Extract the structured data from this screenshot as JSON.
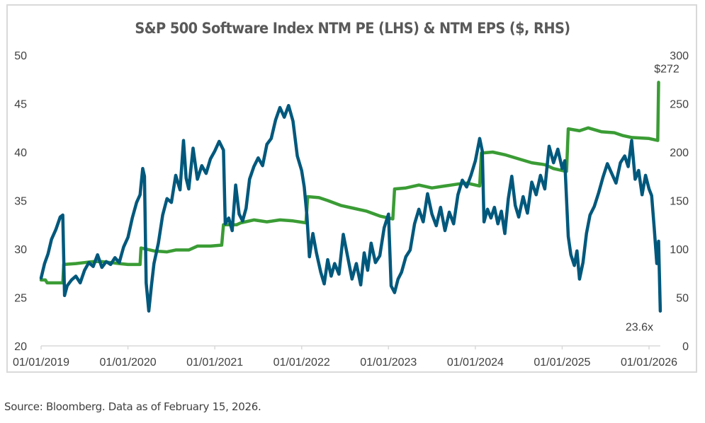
{
  "chart_data": {
    "type": "line",
    "title": "S&P 500 Software Index NTM PE (LHS) & NTM EPS ($, RHS)",
    "xlabel": "",
    "ylabel_left": "",
    "ylabel_right": "",
    "x_ticks": [
      "01/01/2019",
      "01/01/2020",
      "01/01/2021",
      "01/01/2022",
      "01/01/2023",
      "01/01/2024",
      "01/01/2025",
      "01/01/2026"
    ],
    "x_range": [
      2019.0,
      2026.13
    ],
    "y_left": {
      "range": [
        20,
        50
      ],
      "ticks": [
        "20",
        "25",
        "30",
        "35",
        "40",
        "45",
        "50"
      ]
    },
    "y_right": {
      "range": [
        0,
        300
      ],
      "ticks": [
        "0",
        "50",
        "100",
        "150",
        "200",
        "250",
        "300"
      ]
    },
    "grid": false,
    "legend": "none",
    "series": [
      {
        "name": "NTM PE",
        "axis": "left",
        "color": "#00587c",
        "points": [
          [
            2019.0,
            27
          ],
          [
            2019.04,
            28.5
          ],
          [
            2019.08,
            29.5
          ],
          [
            2019.12,
            31
          ],
          [
            2019.17,
            32
          ],
          [
            2019.22,
            33.3
          ],
          [
            2019.25,
            33.5
          ],
          [
            2019.27,
            25.2
          ],
          [
            2019.3,
            26.2
          ],
          [
            2019.35,
            26.8
          ],
          [
            2019.4,
            27.2
          ],
          [
            2019.45,
            26.5
          ],
          [
            2019.5,
            27.8
          ],
          [
            2019.55,
            28.6
          ],
          [
            2019.6,
            28.2
          ],
          [
            2019.65,
            29.4
          ],
          [
            2019.7,
            28.1
          ],
          [
            2019.75,
            28.7
          ],
          [
            2019.8,
            28.4
          ],
          [
            2019.85,
            29.1
          ],
          [
            2019.9,
            28.6
          ],
          [
            2019.95,
            30.2
          ],
          [
            2020.0,
            31.2
          ],
          [
            2020.05,
            33.2
          ],
          [
            2020.1,
            34.8
          ],
          [
            2020.14,
            35.6
          ],
          [
            2020.17,
            38.3
          ],
          [
            2020.19,
            37.5
          ],
          [
            2020.21,
            26.5
          ],
          [
            2020.24,
            23.6
          ],
          [
            2020.27,
            26.2
          ],
          [
            2020.3,
            28.5
          ],
          [
            2020.35,
            30.6
          ],
          [
            2020.4,
            33.5
          ],
          [
            2020.45,
            35.2
          ],
          [
            2020.5,
            34.8
          ],
          [
            2020.55,
            37.6
          ],
          [
            2020.6,
            36.1
          ],
          [
            2020.64,
            41.2
          ],
          [
            2020.67,
            37.3
          ],
          [
            2020.7,
            36.2
          ],
          [
            2020.75,
            40.4
          ],
          [
            2020.8,
            37.2
          ],
          [
            2020.85,
            38.6
          ],
          [
            2020.9,
            37.8
          ],
          [
            2020.95,
            39.3
          ],
          [
            2021.0,
            40.1
          ],
          [
            2021.05,
            41.1
          ],
          [
            2021.1,
            40.2
          ],
          [
            2021.12,
            32.6
          ],
          [
            2021.16,
            33.2
          ],
          [
            2021.2,
            31.9
          ],
          [
            2021.24,
            36.6
          ],
          [
            2021.28,
            33.6
          ],
          [
            2021.32,
            32.9
          ],
          [
            2021.36,
            34.2
          ],
          [
            2021.4,
            37.2
          ],
          [
            2021.45,
            38.5
          ],
          [
            2021.5,
            39.4
          ],
          [
            2021.55,
            38.6
          ],
          [
            2021.6,
            40.8
          ],
          [
            2021.65,
            41.4
          ],
          [
            2021.7,
            43.3
          ],
          [
            2021.75,
            44.6
          ],
          [
            2021.8,
            43.6
          ],
          [
            2021.85,
            44.8
          ],
          [
            2021.9,
            43.2
          ],
          [
            2021.95,
            39.6
          ],
          [
            2022.0,
            38.1
          ],
          [
            2022.03,
            36.4
          ],
          [
            2022.06,
            33.5
          ],
          [
            2022.09,
            29.2
          ],
          [
            2022.13,
            31.6
          ],
          [
            2022.17,
            29.6
          ],
          [
            2022.22,
            27.6
          ],
          [
            2022.26,
            26.4
          ],
          [
            2022.3,
            28.9
          ],
          [
            2022.34,
            27.2
          ],
          [
            2022.38,
            28.5
          ],
          [
            2022.43,
            27.4
          ],
          [
            2022.48,
            31.5
          ],
          [
            2022.53,
            29.2
          ],
          [
            2022.58,
            26.9
          ],
          [
            2022.63,
            28.5
          ],
          [
            2022.68,
            26.3
          ],
          [
            2022.72,
            29.6
          ],
          [
            2022.76,
            27.8
          ],
          [
            2022.8,
            30.6
          ],
          [
            2022.85,
            28.6
          ],
          [
            2022.9,
            29.3
          ],
          [
            2022.95,
            32.2
          ],
          [
            2023.0,
            33.6
          ],
          [
            2023.03,
            26.2
          ],
          [
            2023.07,
            25.5
          ],
          [
            2023.11,
            26.9
          ],
          [
            2023.15,
            27.6
          ],
          [
            2023.2,
            29.2
          ],
          [
            2023.25,
            29.9
          ],
          [
            2023.3,
            32.6
          ],
          [
            2023.35,
            34.1
          ],
          [
            2023.4,
            32.8
          ],
          [
            2023.45,
            35.7
          ],
          [
            2023.5,
            33.6
          ],
          [
            2023.55,
            32.4
          ],
          [
            2023.6,
            34.3
          ],
          [
            2023.65,
            31.9
          ],
          [
            2023.7,
            33.8
          ],
          [
            2023.75,
            32.6
          ],
          [
            2023.8,
            35.6
          ],
          [
            2023.85,
            37.1
          ],
          [
            2023.9,
            36.4
          ],
          [
            2023.95,
            37.6
          ],
          [
            2024.0,
            39.1
          ],
          [
            2024.05,
            41.4
          ],
          [
            2024.08,
            40.1
          ],
          [
            2024.1,
            32.8
          ],
          [
            2024.14,
            34.1
          ],
          [
            2024.18,
            33.2
          ],
          [
            2024.22,
            34.3
          ],
          [
            2024.26,
            32.6
          ],
          [
            2024.3,
            33.9
          ],
          [
            2024.34,
            31.6
          ],
          [
            2024.38,
            35.2
          ],
          [
            2024.42,
            37.5
          ],
          [
            2024.46,
            34.5
          ],
          [
            2024.5,
            33.3
          ],
          [
            2024.55,
            35.4
          ],
          [
            2024.6,
            33.7
          ],
          [
            2024.65,
            36.9
          ],
          [
            2024.7,
            35.6
          ],
          [
            2024.75,
            37.6
          ],
          [
            2024.8,
            36.2
          ],
          [
            2024.85,
            40.6
          ],
          [
            2024.9,
            38.9
          ],
          [
            2024.95,
            40.3
          ],
          [
            2025.0,
            38.3
          ],
          [
            2025.03,
            39.1
          ],
          [
            2025.07,
            31.3
          ],
          [
            2025.1,
            29.4
          ],
          [
            2025.14,
            28.3
          ],
          [
            2025.17,
            29.8
          ],
          [
            2025.2,
            26.9
          ],
          [
            2025.24,
            28.6
          ],
          [
            2025.28,
            31.6
          ],
          [
            2025.32,
            33.5
          ],
          [
            2025.37,
            34.4
          ],
          [
            2025.42,
            35.8
          ],
          [
            2025.47,
            37.4
          ],
          [
            2025.52,
            38.8
          ],
          [
            2025.57,
            37.8
          ],
          [
            2025.62,
            36.8
          ],
          [
            2025.67,
            38.9
          ],
          [
            2025.72,
            39.6
          ],
          [
            2025.76,
            38.5
          ],
          [
            2025.8,
            41.2
          ],
          [
            2025.84,
            37.2
          ],
          [
            2025.88,
            38.1
          ],
          [
            2025.92,
            35.6
          ],
          [
            2025.96,
            37.6
          ],
          [
            2026.0,
            36.2
          ],
          [
            2026.03,
            35.5
          ],
          [
            2026.06,
            32.1
          ],
          [
            2026.09,
            28.5
          ],
          [
            2026.11,
            30.8
          ],
          [
            2026.13,
            23.6
          ]
        ]
      },
      {
        "name": "NTM EPS",
        "axis": "right",
        "color": "#3a9c35",
        "points": [
          [
            2019.0,
            68
          ],
          [
            2019.05,
            68
          ],
          [
            2019.07,
            65
          ],
          [
            2019.25,
            65
          ],
          [
            2019.26,
            84
          ],
          [
            2019.4,
            85
          ],
          [
            2019.5,
            86
          ],
          [
            2019.6,
            87
          ],
          [
            2019.7,
            87
          ],
          [
            2019.8,
            86
          ],
          [
            2019.9,
            85
          ],
          [
            2020.0,
            84
          ],
          [
            2020.14,
            84
          ],
          [
            2020.15,
            101
          ],
          [
            2020.3,
            98
          ],
          [
            2020.45,
            97
          ],
          [
            2020.55,
            99
          ],
          [
            2020.7,
            99
          ],
          [
            2020.8,
            103
          ],
          [
            2020.95,
            103
          ],
          [
            2021.08,
            104
          ],
          [
            2021.1,
            125
          ],
          [
            2021.25,
            125
          ],
          [
            2021.3,
            127
          ],
          [
            2021.45,
            130
          ],
          [
            2021.6,
            128
          ],
          [
            2021.75,
            130
          ],
          [
            2021.9,
            129
          ],
          [
            2022.05,
            127
          ],
          [
            2022.07,
            154
          ],
          [
            2022.2,
            153
          ],
          [
            2022.3,
            150
          ],
          [
            2022.45,
            145
          ],
          [
            2022.6,
            142
          ],
          [
            2022.75,
            139
          ],
          [
            2022.9,
            134
          ],
          [
            2023.05,
            131
          ],
          [
            2023.07,
            162
          ],
          [
            2023.2,
            163
          ],
          [
            2023.35,
            166
          ],
          [
            2023.5,
            163
          ],
          [
            2023.65,
            165
          ],
          [
            2023.8,
            167
          ],
          [
            2023.9,
            168
          ],
          [
            2024.05,
            165
          ],
          [
            2024.07,
            199
          ],
          [
            2024.2,
            200
          ],
          [
            2024.35,
            197
          ],
          [
            2024.5,
            193
          ],
          [
            2024.65,
            189
          ],
          [
            2024.8,
            187
          ],
          [
            2024.9,
            183
          ],
          [
            2025.05,
            180
          ],
          [
            2025.07,
            224
          ],
          [
            2025.2,
            222
          ],
          [
            2025.3,
            225
          ],
          [
            2025.45,
            221
          ],
          [
            2025.6,
            220
          ],
          [
            2025.7,
            217
          ],
          [
            2025.8,
            215
          ],
          [
            2026.0,
            214
          ],
          [
            2026.1,
            212
          ],
          [
            2026.11,
            272
          ]
        ]
      }
    ],
    "annotations": [
      {
        "text": "$272",
        "series": "NTM EPS",
        "at": [
          2026.11,
          272
        ]
      },
      {
        "text": "23.6x",
        "series": "NTM PE",
        "at": [
          2026.13,
          23.6
        ]
      }
    ]
  },
  "footer": {
    "source": "Source: Bloomberg. Data as of February 15, 2026."
  }
}
